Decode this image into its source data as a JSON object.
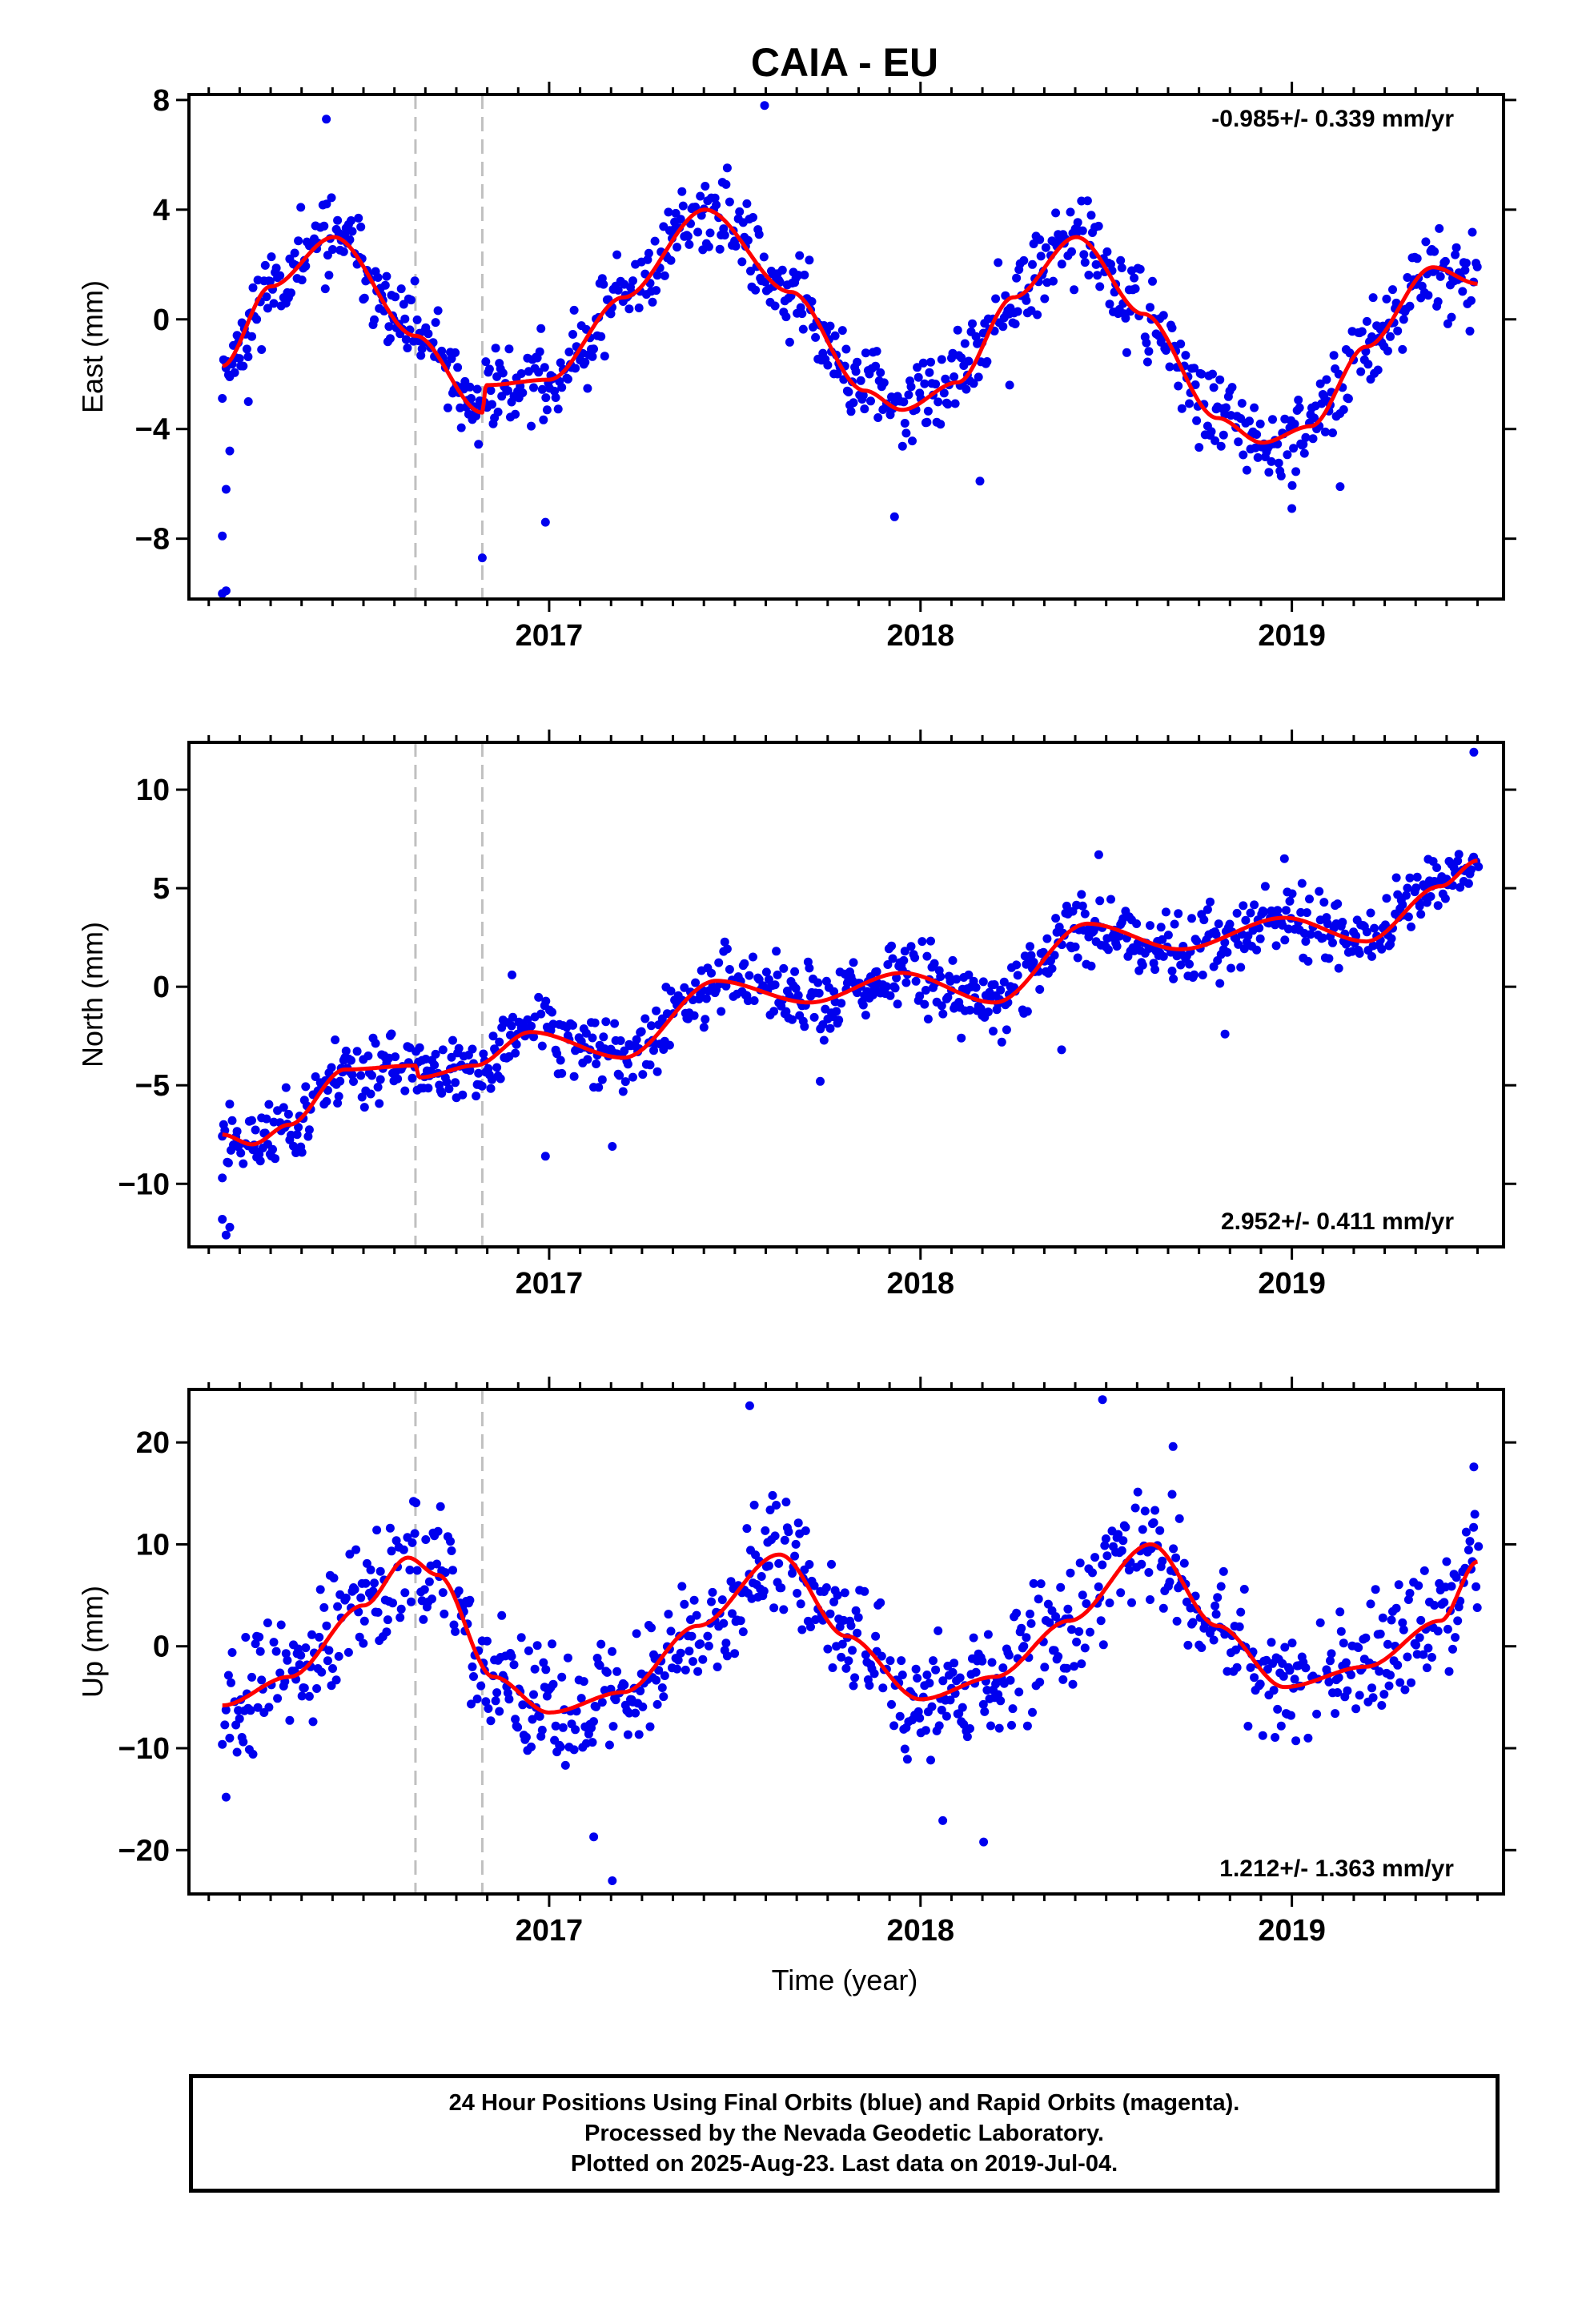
{
  "title": "CAIA - EU",
  "xlabel": "Time (year)",
  "footer": {
    "line1": "24 Hour Positions Using Final Orbits (blue) and Rapid Orbits (magenta).",
    "line2": "Processed by the Nevada Geodetic Laboratory.",
    "line3": "Plotted on 2025-Aug-23. Last data on 2019-Jul-04."
  },
  "colors": {
    "points": "#0000ee",
    "model": "#ff0000",
    "events": "#c0c0c0",
    "axis": "#000000"
  },
  "chart_data": [
    {
      "type": "scatter",
      "component": "East",
      "ylabel": "East (mm)",
      "rate_label": "-0.985+/- 0.339 mm/yr",
      "rate_position": "top-right",
      "xlim": [
        2016.03,
        2019.57
      ],
      "ylim": [
        -10.2,
        8.2
      ],
      "yticks": [
        -8,
        -4,
        0,
        4,
        8
      ],
      "ytick_labels": [
        "−8",
        "−4",
        "0",
        "4",
        "8"
      ],
      "xticks": [
        2017,
        2018,
        2019
      ],
      "event_lines": [
        2016.64,
        2016.82
      ],
      "model": {
        "x": [
          2016.12,
          2016.25,
          2016.42,
          2016.64,
          2016.82,
          2016.83,
          2017.0,
          2017.2,
          2017.42,
          2017.65,
          2017.85,
          2017.95,
          2018.1,
          2018.25,
          2018.42,
          2018.6,
          2018.8,
          2018.92,
          2019.05,
          2019.2,
          2019.38,
          2019.5
        ],
        "y": [
          -1.7,
          1.2,
          3.0,
          -0.6,
          -3.4,
          -2.4,
          -2.2,
          0.8,
          4.0,
          1.0,
          -2.6,
          -3.3,
          -2.3,
          0.8,
          3.0,
          0.2,
          -3.6,
          -4.5,
          -3.9,
          -1.0,
          1.9,
          1.3
        ]
      },
      "anchors": {
        "x": [
          2016.12,
          2016.25,
          2016.42,
          2016.64,
          2016.82,
          2016.83,
          2017.0,
          2017.2,
          2017.42,
          2017.65,
          2017.85,
          2017.95,
          2018.1,
          2018.25,
          2018.42,
          2018.6,
          2018.8,
          2018.92,
          2019.05,
          2019.2,
          2019.38,
          2019.5
        ],
        "y": [
          -1.7,
          1.2,
          3.0,
          -0.6,
          -3.4,
          -2.4,
          -2.2,
          0.8,
          4.0,
          1.0,
          -2.6,
          -3.3,
          -2.3,
          0.8,
          3.0,
          0.2,
          -3.6,
          -4.5,
          -3.9,
          -1.0,
          1.9,
          1.3
        ]
      },
      "noise": 1.1,
      "outliers": [
        [
          2016.12,
          -10.0
        ],
        [
          2016.13,
          -9.9
        ],
        [
          2016.12,
          -7.9
        ],
        [
          2016.13,
          -6.2
        ],
        [
          2016.14,
          -4.8
        ],
        [
          2016.19,
          -3.0
        ],
        [
          2016.4,
          7.3
        ],
        [
          2017.58,
          7.8
        ],
        [
          2016.82,
          -8.7
        ],
        [
          2016.99,
          -7.4
        ],
        [
          2017.93,
          -7.2
        ],
        [
          2018.16,
          -5.9
        ],
        [
          2018.24,
          -2.4
        ],
        [
          2019.0,
          -6.9
        ],
        [
          2019.13,
          -6.1
        ]
      ],
      "seed": 11
    },
    {
      "type": "scatter",
      "component": "North",
      "ylabel": "North (mm)",
      "rate_label": "2.952+/- 0.411 mm/yr",
      "rate_position": "bottom-right",
      "xlim": [
        2016.03,
        2019.57
      ],
      "ylim": [
        -13.2,
        12.4
      ],
      "yticks": [
        -10,
        -5,
        0,
        5,
        10
      ],
      "ytick_labels": [
        "−10",
        "−5",
        "0",
        "5",
        "10"
      ],
      "xticks": [
        2017,
        2018,
        2019
      ],
      "event_lines": [
        2016.64,
        2016.82
      ],
      "model": {
        "x": [
          2016.12,
          2016.2,
          2016.3,
          2016.45,
          2016.64,
          2016.65,
          2016.8,
          2016.95,
          2017.2,
          2017.45,
          2017.7,
          2017.95,
          2018.2,
          2018.45,
          2018.7,
          2018.98,
          2019.2,
          2019.4,
          2019.5
        ],
        "y": [
          -7.5,
          -8.0,
          -7.0,
          -4.2,
          -4.0,
          -4.6,
          -4.0,
          -2.3,
          -3.6,
          0.3,
          -0.8,
          0.7,
          -0.8,
          3.2,
          1.9,
          3.5,
          2.3,
          5.1,
          6.4
        ]
      },
      "anchors": {
        "x": [
          2016.12,
          2016.2,
          2016.3,
          2016.45,
          2016.64,
          2016.65,
          2016.8,
          2016.95,
          2017.2,
          2017.45,
          2017.7,
          2017.95,
          2018.2,
          2018.45,
          2018.7,
          2018.98,
          2019.2,
          2019.4,
          2019.5
        ],
        "y": [
          -7.5,
          -8.0,
          -7.0,
          -4.2,
          -4.0,
          -4.6,
          -4.0,
          -2.3,
          -3.6,
          0.3,
          -0.8,
          0.7,
          -0.8,
          3.2,
          1.9,
          3.5,
          2.3,
          5.1,
          6.4
        ]
      },
      "noise": 1.3,
      "outliers": [
        [
          2016.13,
          -12.6
        ],
        [
          2016.12,
          -11.8
        ],
        [
          2016.14,
          -12.2
        ],
        [
          2016.12,
          -9.7
        ],
        [
          2016.99,
          -8.6
        ],
        [
          2017.17,
          -8.1
        ],
        [
          2016.9,
          0.6
        ],
        [
          2017.73,
          -4.8
        ],
        [
          2018.38,
          -3.2
        ],
        [
          2018.82,
          -2.4
        ],
        [
          2019.49,
          11.9
        ],
        [
          2018.48,
          6.7
        ],
        [
          2018.98,
          6.5
        ]
      ],
      "seed": 23
    },
    {
      "type": "scatter",
      "component": "Up",
      "ylabel": "Up (mm)",
      "rate_label": "1.212+/- 1.363 mm/yr",
      "rate_position": "bottom-right",
      "xlim": [
        2016.03,
        2019.57
      ],
      "ylim": [
        -24.3,
        25.2
      ],
      "yticks": [
        -20,
        -10,
        0,
        10,
        20
      ],
      "ytick_labels": [
        "−20",
        "−10",
        "0",
        "10",
        "20"
      ],
      "xticks": [
        2017,
        2018,
        2019
      ],
      "event_lines": [
        2016.64,
        2016.82
      ],
      "model": {
        "x": [
          2016.12,
          2016.3,
          2016.5,
          2016.62,
          2016.7,
          2016.85,
          2017.0,
          2017.2,
          2017.4,
          2017.62,
          2017.8,
          2018.0,
          2018.2,
          2018.4,
          2018.62,
          2018.8,
          2018.98,
          2019.2,
          2019.4,
          2019.5
        ],
        "y": [
          -5.8,
          -3.0,
          4.0,
          8.7,
          7.0,
          -3.0,
          -6.5,
          -4.5,
          2.0,
          9.0,
          1.0,
          -5.2,
          -3.0,
          2.5,
          10.0,
          2.0,
          -4.0,
          -2.0,
          2.5,
          8.3
        ]
      },
      "anchors": {
        "x": [
          2016.12,
          2016.3,
          2016.5,
          2016.62,
          2016.7,
          2016.85,
          2017.0,
          2017.2,
          2017.4,
          2017.62,
          2017.8,
          2018.0,
          2018.2,
          2018.4,
          2018.62,
          2018.8,
          2018.98,
          2019.2,
          2019.4,
          2019.5
        ],
        "y": [
          -5.8,
          -3.0,
          4.0,
          8.7,
          7.0,
          -3.0,
          -6.5,
          -4.5,
          2.0,
          9.0,
          1.0,
          -5.2,
          -3.0,
          2.5,
          10.0,
          2.0,
          -4.0,
          -2.0,
          2.5,
          8.3
        ]
      },
      "noise": 4.2,
      "outliers": [
        [
          2017.54,
          23.6
        ],
        [
          2018.49,
          24.2
        ],
        [
          2017.17,
          -23.0
        ],
        [
          2017.12,
          -18.7
        ],
        [
          2018.06,
          -17.1
        ],
        [
          2018.17,
          -19.2
        ],
        [
          2016.13,
          -14.8
        ],
        [
          2019.49,
          17.6
        ],
        [
          2018.68,
          19.6
        ]
      ],
      "seed": 37
    }
  ]
}
